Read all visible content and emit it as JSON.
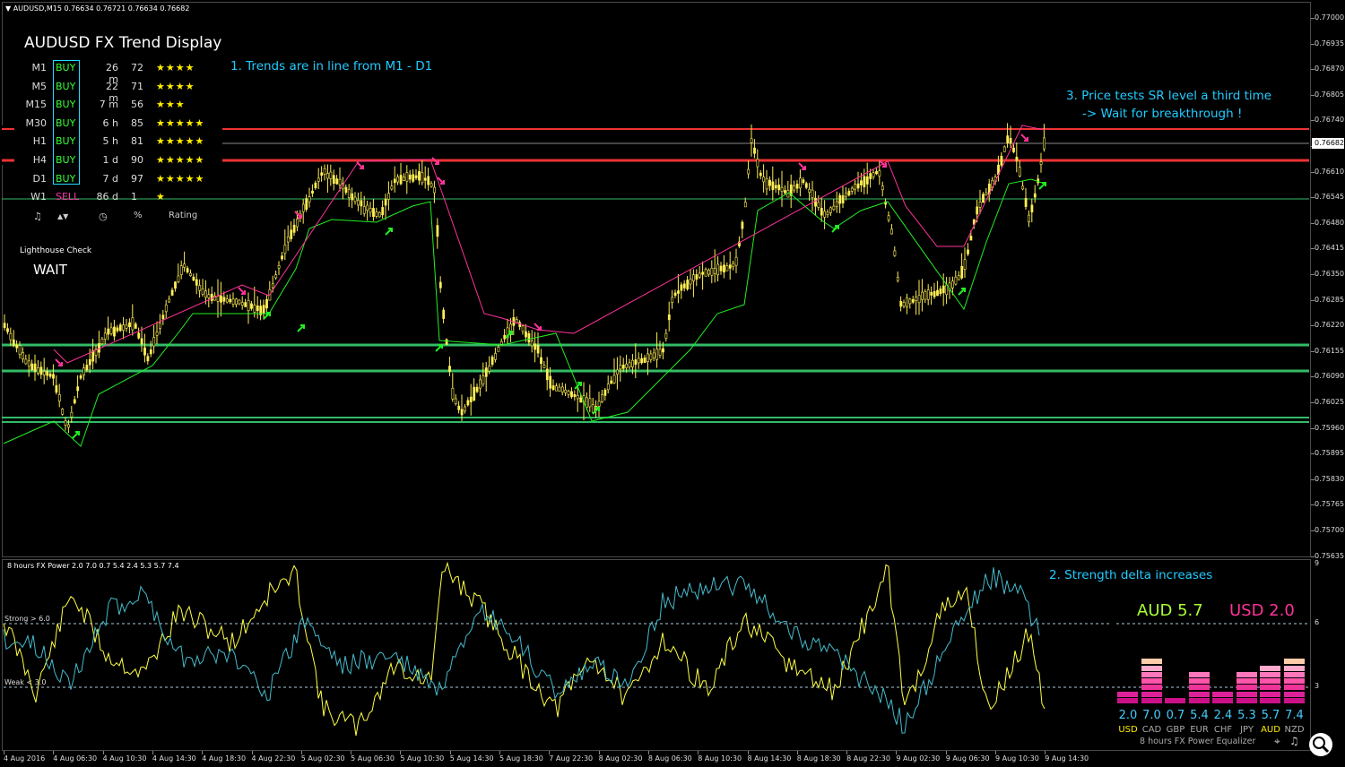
{
  "window": {
    "symbol_header": "AUDUSD,M15  0.76634 0.76721 0.76634 0.76682",
    "current_price": "0.76682"
  },
  "price_axis": [
    "0.77000",
    "0.76935",
    "0.76870",
    "0.76805",
    "0.76740",
    "0.76675",
    "0.76610",
    "0.76545",
    "0.76480",
    "0.76415",
    "0.76350",
    "0.76285",
    "0.76220",
    "0.76155",
    "0.76090",
    "0.76025",
    "0.75960",
    "0.75895",
    "0.75830",
    "0.75765",
    "0.75700",
    "0.75635"
  ],
  "time_axis": [
    "4 Aug 2016",
    "4 Aug 06:30",
    "4 Aug 10:30",
    "4 Aug 14:30",
    "4 Aug 18:30",
    "4 Aug 22:30",
    "5 Aug 02:30",
    "5 Aug 06:30",
    "5 Aug 10:30",
    "5 Aug 14:30",
    "5 Aug 18:30",
    "7 Aug 22:30",
    "8 Aug 02:30",
    "8 Aug 06:30",
    "8 Aug 10:30",
    "8 Aug 14:30",
    "8 Aug 18:30",
    "8 Aug 22:30",
    "9 Aug 02:30",
    "9 Aug 06:30",
    "9 Aug 10:30",
    "9 Aug 14:30"
  ],
  "trend_panel": {
    "title": "AUDUSD FX Trend Display",
    "rows": [
      {
        "tf": "M1",
        "signal": "BUY",
        "dur": "26 m",
        "score": "72",
        "stars": "★★★★"
      },
      {
        "tf": "M5",
        "signal": "BUY",
        "dur": "22 m",
        "score": "71",
        "stars": "★★★★"
      },
      {
        "tf": "M15",
        "signal": "BUY",
        "dur": "7 m",
        "score": "56",
        "stars": "★★★"
      },
      {
        "tf": "M30",
        "signal": "BUY",
        "dur": "6 h",
        "score": "85",
        "stars": "★★★★★"
      },
      {
        "tf": "H1",
        "signal": "BUY",
        "dur": "5 h",
        "score": "81",
        "stars": "★★★★★"
      },
      {
        "tf": "H4",
        "signal": "BUY",
        "dur": "1 d",
        "score": "90",
        "stars": "★★★★★"
      },
      {
        "tf": "D1",
        "signal": "BUY",
        "dur": "7 d",
        "score": "97",
        "stars": "★★★★★"
      },
      {
        "tf": "W1",
        "signal": "SELL",
        "dur": "86 d",
        "score": "1",
        "stars": "★"
      }
    ],
    "header": {
      "icon_sound": "♫",
      "icon_sort": "▲▼",
      "icon_clock": "◷",
      "percent": "%",
      "rating": "Rating"
    }
  },
  "lighthouse": {
    "title": "Lighthouse Check",
    "status": "WAIT"
  },
  "annotations": {
    "a1": "1. Trends are in line from M1 - D1",
    "a2": "2. Strength delta increases",
    "a3_line1": "3. Price tests SR level a third time",
    "a3_line2": "-> Wait for breakthrough !"
  },
  "subwindow": {
    "title": "8 hours FX Power 2.0 7.0 0.7 5.4 2.4 5.3 5.7 7.4",
    "strong_label": "Strong > 6.0",
    "weak_label": "Weak < 3.0",
    "scale": [
      "9",
      "6",
      "3"
    ],
    "aud_big": "AUD 5.7",
    "usd_big": "USD 2.0"
  },
  "equalizer": {
    "caption": "8 hours FX Power Equalizer",
    "items": [
      {
        "cur": "USD",
        "val": "2.0",
        "level": 2.0,
        "hl": true
      },
      {
        "cur": "CAD",
        "val": "7.0",
        "level": 7.0,
        "hl": false
      },
      {
        "cur": "GBP",
        "val": "0.7",
        "level": 0.7,
        "hl": false
      },
      {
        "cur": "EUR",
        "val": "5.4",
        "level": 5.4,
        "hl": false
      },
      {
        "cur": "CHF",
        "val": "2.4",
        "level": 2.4,
        "hl": false
      },
      {
        "cur": "JPY",
        "val": "5.3",
        "level": 5.3,
        "hl": false
      },
      {
        "cur": "AUD",
        "val": "5.7",
        "level": 5.7,
        "hl": true
      },
      {
        "cur": "NZD",
        "val": "7.4",
        "level": 7.4,
        "hl": false
      }
    ]
  },
  "colors": {
    "bull": "#ffee55",
    "trail_up": "#22ee22",
    "trail_down": "#ff3399",
    "resistance": "#ff3333",
    "support": "#33bb66",
    "aud_line": "#ffff44",
    "usd_line": "#44bbcc"
  }
}
